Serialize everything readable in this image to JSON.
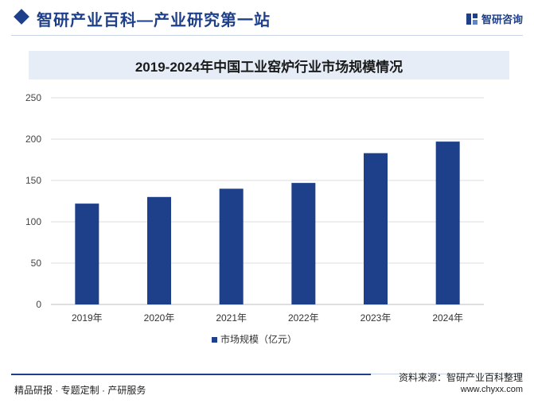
{
  "header": {
    "site_title": "智研产业百科—产业研究第一站",
    "brand_name": "智研咨询",
    "brand_color": "#1e3f8a"
  },
  "chart_data": {
    "type": "bar",
    "title": "2019-2024年中国工业窑炉行业市场规模情况",
    "categories": [
      "2019年",
      "2020年",
      "2021年",
      "2022年",
      "2023年",
      "2024年"
    ],
    "series": [
      {
        "name": "市场规模（亿元）",
        "values": [
          122,
          130,
          140,
          147,
          183,
          197
        ],
        "color": "#1e3f8a"
      }
    ],
    "xlabel": "",
    "ylabel": "",
    "ylim": [
      0,
      250
    ],
    "yticks": [
      0,
      50,
      100,
      150,
      200,
      250
    ],
    "grid": true,
    "legend_position": "bottom"
  },
  "footer": {
    "tagline": "精品研报 · 专题定制 · 产研服务",
    "source": "资料来源：智研产业百科整理",
    "url": "www.chyxx.com"
  }
}
